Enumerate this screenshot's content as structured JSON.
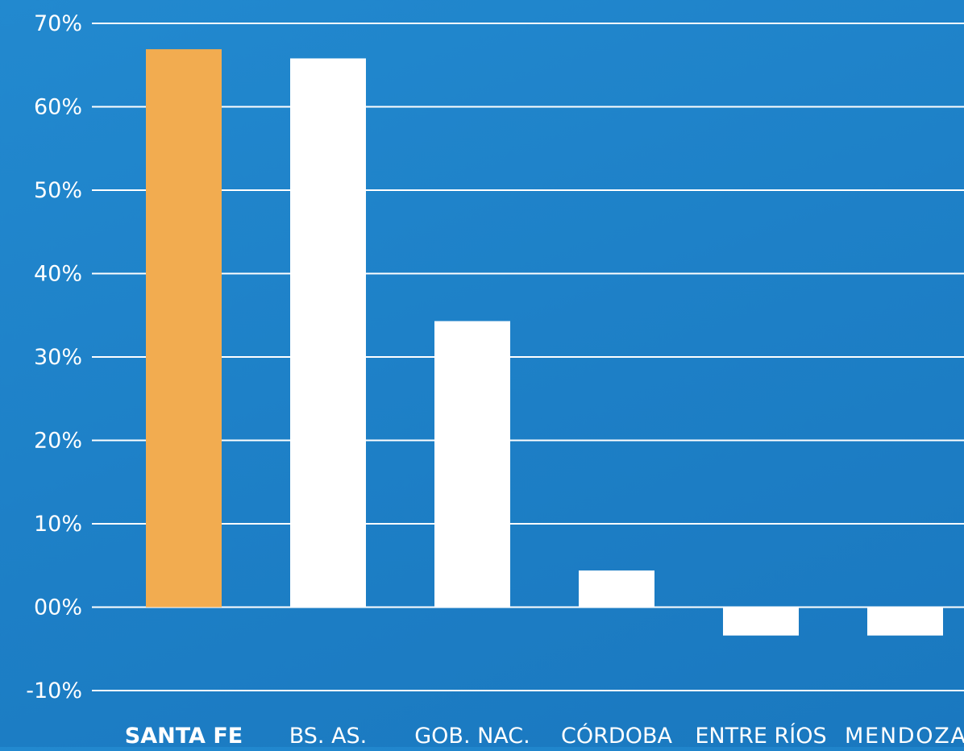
{
  "chart_data": {
    "type": "bar",
    "categories": [
      "SANTA FE",
      "BS. AS.",
      "GOB. NAC.",
      "CÓRDOBA",
      "ENTRE RÍOS",
      "MENDOZA"
    ],
    "highlight_category": "SANTA FE",
    "values": [
      66.9,
      65.8,
      34.3,
      4.4,
      -3.4,
      -3.4
    ],
    "value_unit": "%",
    "ylim": [
      -10,
      70
    ],
    "y_ticks": [
      {
        "value": 70,
        "label": "70%"
      },
      {
        "value": 60,
        "label": "60%"
      },
      {
        "value": 50,
        "label": "50%"
      },
      {
        "value": 40,
        "label": "40%"
      },
      {
        "value": 30,
        "label": "30%"
      },
      {
        "value": 20,
        "label": "20%"
      },
      {
        "value": 10,
        "label": "10%"
      },
      {
        "value": 0,
        "label": "00%"
      },
      {
        "value": -10,
        "label": "-10%"
      }
    ],
    "grid": true,
    "title": "",
    "xlabel": "",
    "ylabel": "",
    "colors": {
      "background": "#1f84ca",
      "highlight_bar": "#f2ac50",
      "bar": "#ffffff",
      "grid": "#ffffff",
      "text": "#ffffff"
    }
  }
}
